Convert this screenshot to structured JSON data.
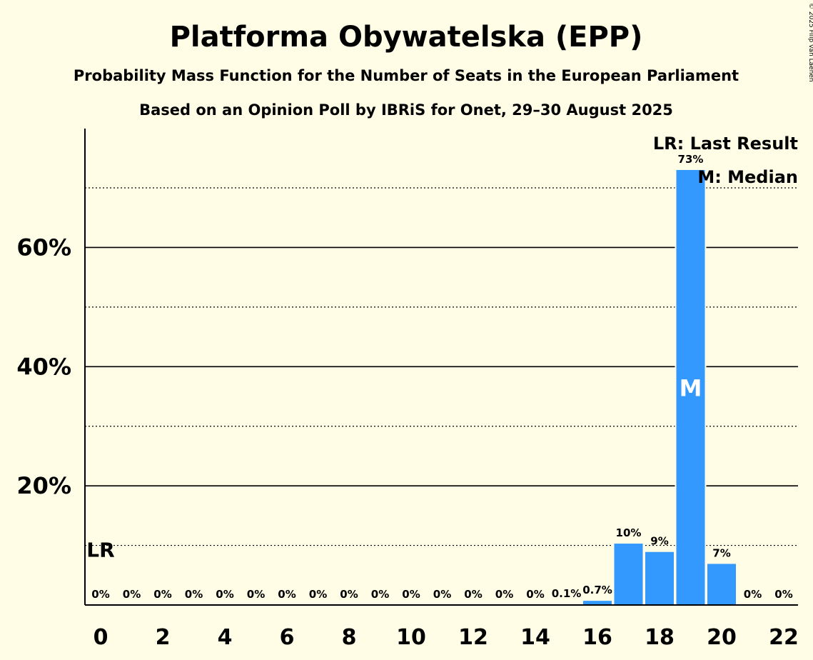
{
  "chart_data": {
    "type": "bar",
    "title": "Platforma Obywatelska (EPP)",
    "subtitle": "Probability Mass Function for the Number of Seats in the European Parliament",
    "subtitle2": "Based on an Opinion Poll by IBRiS for Onet, 29–30 August 2025",
    "copyright": "© 2025 Filip van Laenen",
    "legend": {
      "lr": "LR: Last Result",
      "median": "M: Median",
      "placement": "top-right"
    },
    "x": [
      0,
      1,
      2,
      3,
      4,
      5,
      6,
      7,
      8,
      9,
      10,
      11,
      12,
      13,
      14,
      15,
      16,
      17,
      18,
      19,
      20,
      21,
      22
    ],
    "values": [
      0,
      0,
      0,
      0,
      0,
      0,
      0,
      0,
      0,
      0,
      0,
      0,
      0,
      0,
      0,
      0.1,
      0.7,
      10.3,
      8.9,
      73.0,
      6.9,
      0,
      0
    ],
    "data_labels": [
      "0%",
      "0%",
      "0%",
      "0%",
      "0%",
      "0%",
      "0%",
      "0%",
      "0%",
      "0%",
      "0%",
      "0%",
      "0%",
      "0%",
      "0%",
      "0.1%",
      "0.7%",
      "10%",
      "9%",
      "73%",
      "7%",
      "0%",
      "0%"
    ],
    "x_ticks": [
      "0",
      "2",
      "4",
      "6",
      "8",
      "10",
      "12",
      "14",
      "16",
      "18",
      "20",
      "22"
    ],
    "x_tick_values": [
      0,
      2,
      4,
      6,
      8,
      10,
      12,
      14,
      16,
      18,
      20,
      22
    ],
    "y_ticks": [
      "20%",
      "40%",
      "60%"
    ],
    "y_tick_values": [
      20,
      40,
      60
    ],
    "y_minor_gridlines": [
      10,
      30,
      50,
      70
    ],
    "ylim": [
      0,
      80
    ],
    "last_result_seat": 0,
    "last_result_label": "LR",
    "median_seat": 19,
    "median_label": "M",
    "bar_color": "#3399FF",
    "background_color": "#FFFDE6",
    "grid": true
  }
}
